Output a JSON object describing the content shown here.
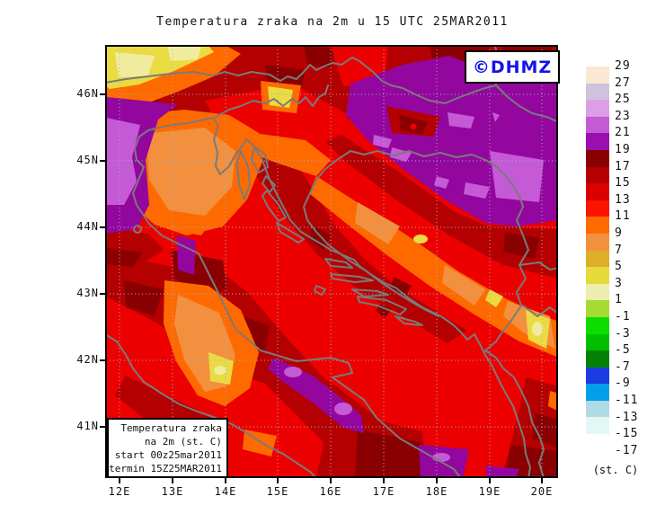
{
  "page": {
    "title": "Temperatura zraka na 2m u 15 UTC 25MAR2011",
    "watermark": "©DHMZ"
  },
  "legend_box": {
    "line1": "Temperatura zraka",
    "line2": "na 2m (st. C)",
    "line3": "start 00z25mar2011",
    "line4": "termin 15Z25MAR2011"
  },
  "axes": {
    "lat": [
      "46N",
      "45N",
      "44N",
      "43N",
      "42N",
      "41N"
    ],
    "lon": [
      "12E",
      "13E",
      "14E",
      "15E",
      "16E",
      "17E",
      "18E",
      "19E",
      "20E"
    ]
  },
  "colorbar": {
    "unit": "(st. C)",
    "ticks": [
      "29",
      "27",
      "25",
      "23",
      "21",
      "19",
      "17",
      "15",
      "13",
      "11",
      "9",
      "7",
      "5",
      "3",
      "1",
      "-1",
      "-3",
      "-5",
      "-7",
      "-9",
      "-11",
      "-13",
      "-15",
      "-17"
    ],
    "colors": [
      "#FBE7D2",
      "#CEC2DC",
      "#DC9FE6",
      "#C55AD6",
      "#9A0FAE",
      "#8A0000",
      "#B40000",
      "#DC0000",
      "#FB1400",
      "#FF6A00",
      "#F29040",
      "#DDAE28",
      "#E7DA3B",
      "#EDEDB2",
      "#A6DB35",
      "#0DDE00",
      "#00BF00",
      "#048205",
      "#1C3BE0",
      "#02A0E8",
      "#AFDBE5",
      "#E2F8F4",
      "#FFFFFF"
    ]
  },
  "map_palette": {
    "red": "#EC0000",
    "darkred": "#B40000",
    "maroon": "#8A0000",
    "purple": "#93079E",
    "orchid": "#C55AD6",
    "orange": "#FF6A00",
    "lightorange": "#F29040",
    "yellow": "#EADB42",
    "lightyellow": "#F0EC9E",
    "watermark_blue": "#1414E6",
    "coast": "#7A7A7A",
    "grid": "#9FB2BE",
    "frame": "#000000"
  }
}
